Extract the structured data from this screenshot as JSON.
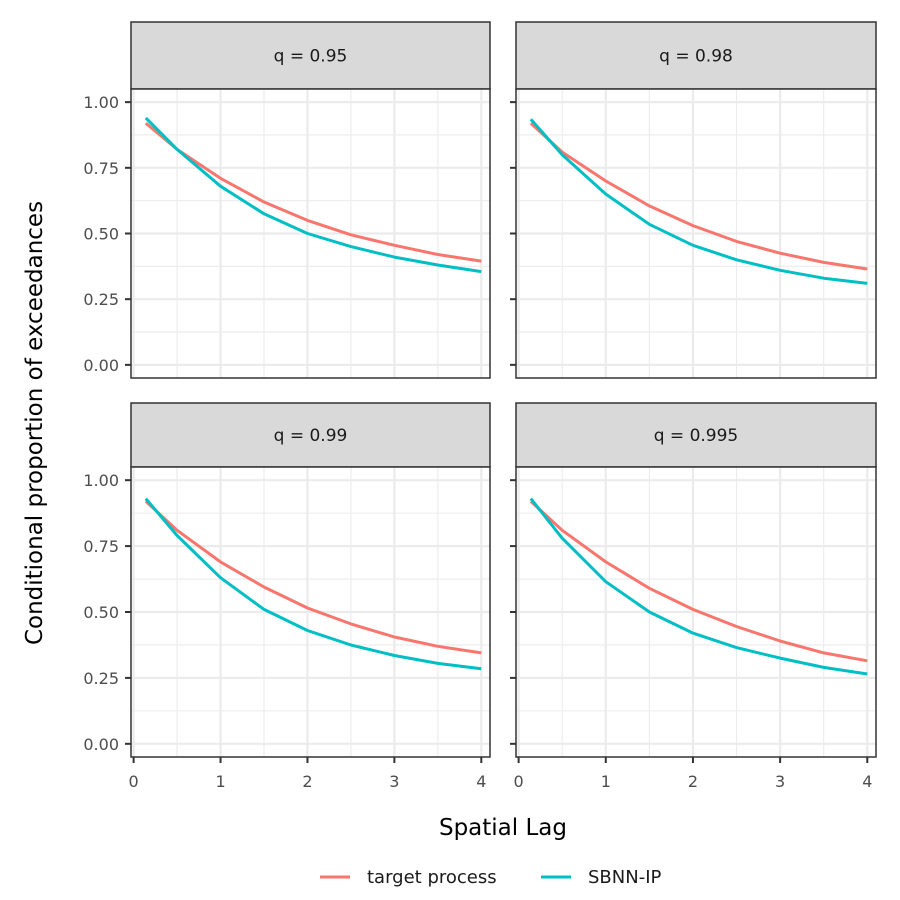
{
  "chart_data": {
    "type": "line",
    "xlabel": "Spatial Lag",
    "ylabel": "Conditional proportion of exceedances",
    "xlim": [
      -0.03,
      4.1
    ],
    "ylim": [
      -0.05,
      1.05
    ],
    "x_ticks": [
      0,
      1,
      2,
      3,
      4
    ],
    "x_tick_labels": [
      "0",
      "1",
      "2",
      "3",
      "4"
    ],
    "y_ticks": [
      0,
      0.25,
      0.5,
      0.75,
      1.0
    ],
    "y_tick_labels": [
      "0.00",
      "0.25",
      "0.50",
      "0.75",
      "1.00"
    ],
    "grid": true,
    "legend_position": "bottom",
    "colors": {
      "target process": "#F8766D",
      "SBNN-IP": "#00BFC4"
    },
    "x": [
      0.14,
      0.5,
      1.0,
      1.5,
      2.0,
      2.5,
      3.0,
      3.5,
      4.0
    ],
    "panels": [
      {
        "label": "q = 0.95",
        "series": [
          {
            "name": "target process",
            "values": [
              0.92,
              0.82,
              0.71,
              0.62,
              0.55,
              0.495,
              0.455,
              0.42,
              0.395
            ]
          },
          {
            "name": "SBNN-IP",
            "values": [
              0.94,
              0.82,
              0.68,
              0.575,
              0.5,
              0.45,
              0.41,
              0.38,
              0.355
            ]
          }
        ]
      },
      {
        "label": "q = 0.98",
        "series": [
          {
            "name": "target process",
            "values": [
              0.92,
              0.81,
              0.7,
              0.605,
              0.53,
              0.47,
              0.425,
              0.39,
              0.365
            ]
          },
          {
            "name": "SBNN-IP",
            "values": [
              0.935,
              0.8,
              0.65,
              0.535,
              0.455,
              0.4,
              0.36,
              0.33,
              0.31
            ]
          }
        ]
      },
      {
        "label": "q = 0.99",
        "series": [
          {
            "name": "target process",
            "values": [
              0.92,
              0.81,
              0.69,
              0.595,
              0.515,
              0.455,
              0.405,
              0.37,
              0.345
            ]
          },
          {
            "name": "SBNN-IP",
            "values": [
              0.93,
              0.79,
              0.63,
              0.51,
              0.43,
              0.375,
              0.335,
              0.305,
              0.285
            ]
          }
        ]
      },
      {
        "label": "q = 0.995",
        "series": [
          {
            "name": "target process",
            "values": [
              0.92,
              0.81,
              0.69,
              0.59,
              0.51,
              0.445,
              0.39,
              0.345,
              0.315
            ]
          },
          {
            "name": "SBNN-IP",
            "values": [
              0.93,
              0.78,
              0.615,
              0.5,
              0.42,
              0.365,
              0.325,
              0.29,
              0.265
            ]
          }
        ]
      }
    ],
    "legend": [
      "target process",
      "SBNN-IP"
    ]
  }
}
